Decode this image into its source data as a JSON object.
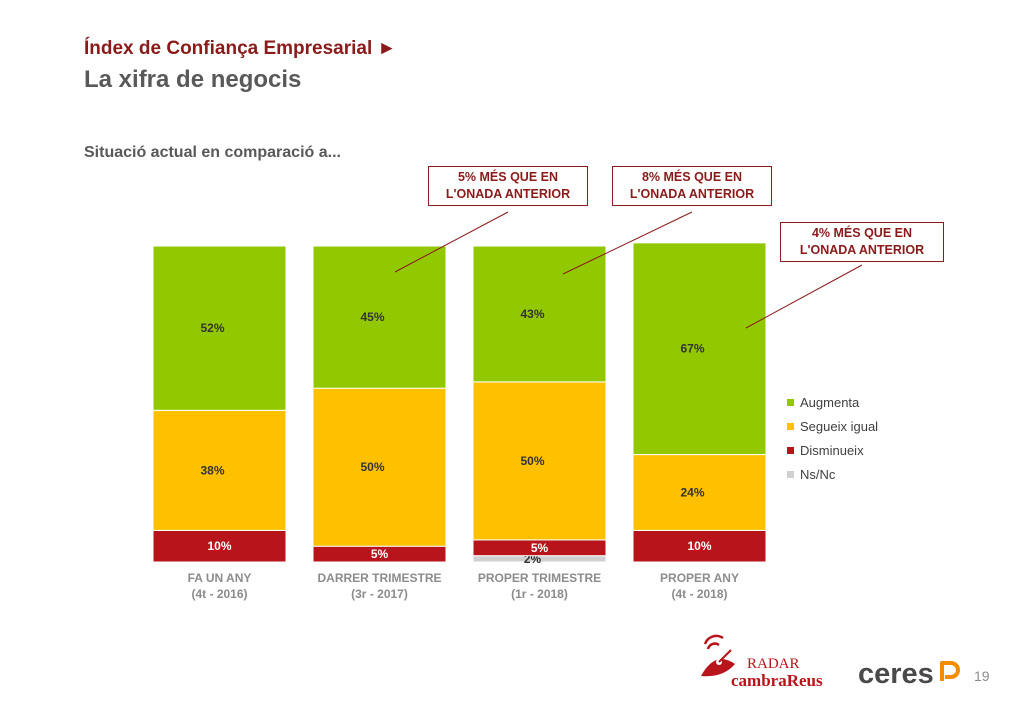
{
  "header": {
    "title": "Índex de Confiança Empresarial ►",
    "subtitle": "La xifra de negocis",
    "section": "Situació actual en comparació a..."
  },
  "chart_data": {
    "type": "bar",
    "stacked": true,
    "categories": [
      "FA UN ANY (4t - 2016)",
      "DARRER TRIMESTRE (3r - 2017)",
      "PROPER TRIMESTRE (1r - 2018)",
      "PROPER ANY (4t - 2018)"
    ],
    "category_lines": [
      [
        "FA UN ANY",
        "(4t - 2016)"
      ],
      [
        "DARRER TRIMESTRE",
        "(3r - 2017)"
      ],
      [
        "PROPER TRIMESTRE",
        "(1r -   2018)"
      ],
      [
        "PROPER ANY",
        "(4t - 2018)"
      ]
    ],
    "series": [
      {
        "name": "Ns/Nc",
        "color": "#d0d0d0",
        "values": [
          0,
          0,
          2,
          0
        ],
        "labels": [
          "",
          "",
          "2%",
          ""
        ]
      },
      {
        "name": "Disminueix",
        "color": "#B8141B",
        "values": [
          10,
          5,
          5,
          10
        ],
        "labels": [
          "10%",
          "5%",
          "5%",
          "10%"
        ]
      },
      {
        "name": "Segueix igual",
        "color": "#FFC000",
        "values": [
          38,
          50,
          50,
          24
        ],
        "labels": [
          "38%",
          "50%",
          "50%",
          "24%"
        ]
      },
      {
        "name": "Augmenta",
        "color": "#92C800",
        "values": [
          52,
          45,
          43,
          67
        ],
        "labels": [
          "52%",
          "45%",
          "43%",
          "67%"
        ]
      }
    ],
    "legend": [
      "Augmenta",
      "Segueix igual",
      "Disminueix",
      "Ns/Nc"
    ],
    "legend_placement": "right",
    "ylim": [
      0,
      100
    ],
    "grid": false,
    "annotations": [
      {
        "line1": "5%  MÉS QUE EN",
        "line2": "L'ONADA ANTERIOR",
        "category": 1
      },
      {
        "line1": "8%  MÉS QUE EN",
        "line2": "L'ONADA ANTERIOR",
        "category": 2
      },
      {
        "line1": "4%  MÉS QUE EN",
        "line2": "L'ONADA ANTERIOR",
        "category": 3
      }
    ]
  },
  "footer": {
    "page_number": "19",
    "logo_radar_top": "RADAR",
    "logo_radar_bottom": "cambraReus",
    "logo_ceres": "ceres"
  }
}
